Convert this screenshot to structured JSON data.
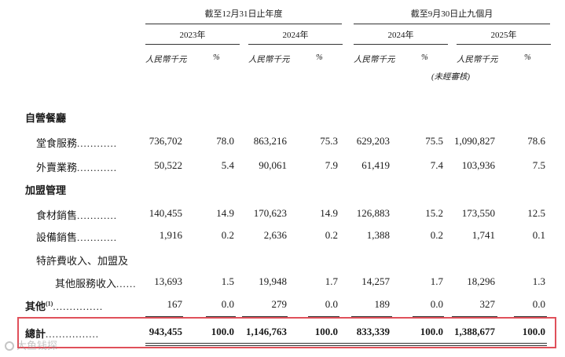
{
  "headers": {
    "group1": "截至12月31日止年度",
    "group2": "截至9月30日止九個月",
    "years": [
      "2023年",
      "2024年",
      "2024年",
      "2025年"
    ],
    "unit": "人民幣千元",
    "pct": "%",
    "unaudited": "(未經審核)"
  },
  "sections": {
    "self_operated": "自營餐廳",
    "franchise": "加盟管理"
  },
  "rows": {
    "dine_in": {
      "label": "堂食服務",
      "dots": "............",
      "values": [
        "736,702",
        "78.0",
        "863,216",
        "75.3",
        "629,203",
        "75.5",
        "1,090,827",
        "78.6"
      ]
    },
    "delivery": {
      "label": "外賣業務",
      "dots": "............",
      "values": [
        "50,522",
        "5.4",
        "90,061",
        "7.9",
        "61,419",
        "7.4",
        "103,936",
        "7.5"
      ]
    },
    "ingredients": {
      "label": "食材銷售",
      "dots": "............",
      "values": [
        "140,455",
        "14.9",
        "170,623",
        "14.9",
        "126,883",
        "15.2",
        "173,550",
        "12.5"
      ]
    },
    "equipment": {
      "label": "設備銷售",
      "dots": "............",
      "values": [
        "1,916",
        "0.2",
        "2,636",
        "0.2",
        "1,388",
        "0.2",
        "1,741",
        "0.1"
      ]
    },
    "franchise_fee_line1": {
      "label": "特許費收入、加盟及"
    },
    "franchise_fee": {
      "label": "其他服務收入",
      "dots": "......",
      "values": [
        "13,693",
        "1.5",
        "19,948",
        "1.7",
        "14,257",
        "1.7",
        "18,296",
        "1.3"
      ]
    },
    "others": {
      "label": "其他",
      "note": "(1)",
      "dots": "...............",
      "values": [
        "167",
        "0.0",
        "279",
        "0.0",
        "189",
        "0.0",
        "327",
        "0.0"
      ]
    },
    "total": {
      "label": "總計",
      "dots": "................",
      "values": [
        "943,455",
        "100.0",
        "1,146,763",
        "100.0",
        "833,339",
        "100.0",
        "1,388,677",
        "100.0"
      ]
    }
  },
  "watermark": "大鱼钱探",
  "colors": {
    "highlight_border": "#e0505a",
    "rule": "#333333"
  }
}
